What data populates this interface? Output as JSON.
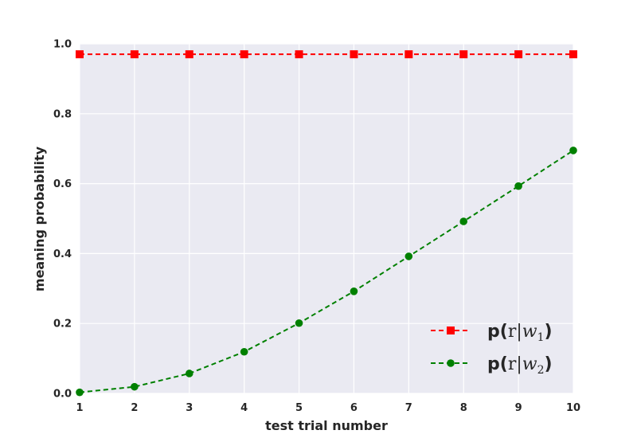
{
  "chart_data": {
    "type": "line",
    "xlabel": "test trial number",
    "ylabel": "meaning probability",
    "xlim": [
      1,
      10
    ],
    "ylim": [
      0.0,
      1.0
    ],
    "x_ticks": [
      "1",
      "2",
      "3",
      "4",
      "5",
      "6",
      "7",
      "8",
      "9",
      "10"
    ],
    "y_ticks": [
      "0.0",
      "0.2",
      "0.4",
      "0.6",
      "0.8",
      "1.0"
    ],
    "grid": true,
    "legend_position": "lower-right",
    "x": [
      1,
      2,
      3,
      4,
      5,
      6,
      7,
      8,
      9,
      10
    ],
    "series": [
      {
        "name": "p(r|w1)",
        "legend": {
          "prefix": "p(",
          "r": "r",
          "bar": "|",
          "w": "w",
          "sub": "1",
          "suffix": ")"
        },
        "color": "#ff0000",
        "marker": "square",
        "linestyle": "dashed",
        "values": [
          0.97,
          0.97,
          0.97,
          0.97,
          0.97,
          0.97,
          0.97,
          0.97,
          0.97,
          0.97
        ]
      },
      {
        "name": "p(r|w2)",
        "legend": {
          "prefix": "p(",
          "r": "r",
          "bar": "|",
          "w": "w",
          "sub": "2",
          "suffix": ")"
        },
        "color": "#008000",
        "marker": "circle",
        "linestyle": "dashed",
        "values": [
          0.003,
          0.019,
          0.057,
          0.119,
          0.201,
          0.292,
          0.392,
          0.492,
          0.593,
          0.695
        ]
      }
    ],
    "plot_background": "#eaeaf2",
    "grid_color": "#ffffff"
  }
}
